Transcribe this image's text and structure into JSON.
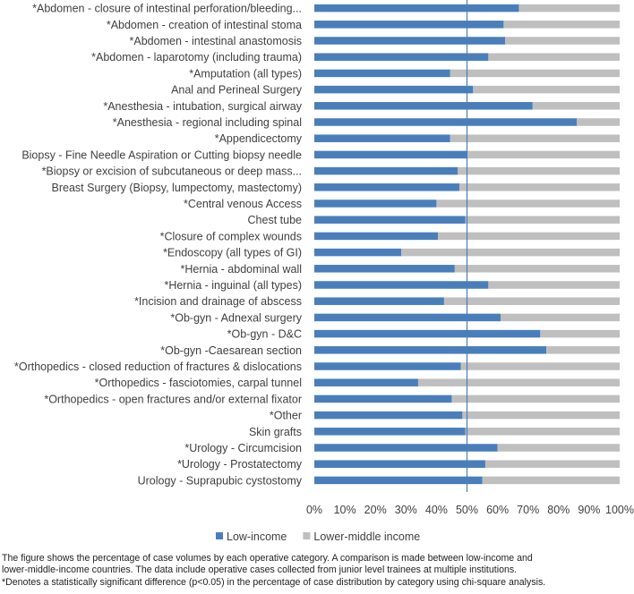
{
  "chart_data": {
    "type": "bar",
    "stacked": true,
    "orientation": "horizontal",
    "title": "",
    "xlabel": "",
    "ylabel": "",
    "xlim": [
      0,
      100
    ],
    "x_ticks": [
      "0%",
      "10%",
      "20%",
      "30%",
      "40%",
      "50%",
      "60%",
      "70%",
      "80%",
      "90%",
      "100%"
    ],
    "reference_line": 50,
    "legend_position": "bottom",
    "categories": [
      "*Abdomen - closure of intestinal perforation/bleeding...",
      "*Abdomen - creation of intestinal stoma",
      "*Abdomen - intestinal anastomosis",
      "*Abdomen - laparotomy (including trauma)",
      "*Amputation (all types)",
      "Anal and Perineal Surgery",
      "*Anesthesia - intubation, surgical airway",
      "*Anesthesia - regional including spinal",
      "*Appendicectomy",
      "Biopsy - Fine Needle Aspiration or Cutting biopsy needle",
      "*Biopsy or excision of subcutaneous or deep mass...",
      "Breast Surgery (Biopsy, lumpectomy, mastectomy)",
      "*Central venous Access",
      "Chest tube",
      "*Closure of complex wounds",
      "*Endoscopy (all types of GI)",
      "*Hernia - abdominal wall",
      "*Hernia - inguinal (all types)",
      "*Incision and drainage of abscess",
      "*Ob-gyn - Adnexal surgery",
      "*Ob-gyn - D&C",
      "*Ob-gyn -Caesarean section",
      "*Orthopedics - closed reduction of fractures & dislocations",
      "*Orthopedics - fasciotomies, carpal tunnel",
      "*Orthopedics - open fractures and/or external fixator",
      "*Other",
      "Skin grafts",
      "*Urology - Circumcision",
      "*Urology - Prostatectomy",
      "Urology - Suprapubic cystostomy"
    ],
    "series": [
      {
        "name": "Low-income",
        "color": "#4a7ebb",
        "values": [
          67,
          62,
          62.5,
          57,
          44.5,
          52,
          71.5,
          86,
          44.5,
          50,
          47,
          47.5,
          40,
          49.5,
          40.5,
          28.5,
          46,
          57,
          42.5,
          61,
          74,
          76,
          48,
          34,
          45,
          48.5,
          49.5,
          60,
          56,
          55
        ]
      },
      {
        "name": "Lower-middle income",
        "color": "#bfbfbf",
        "values": [
          33,
          38,
          37.5,
          43,
          55.5,
          48,
          28.5,
          14,
          55.5,
          50,
          53,
          52.5,
          60,
          50.5,
          59.5,
          71.5,
          54,
          43,
          57.5,
          39,
          26,
          24,
          52,
          66,
          55,
          51.5,
          50.5,
          40,
          44,
          45
        ]
      }
    ]
  },
  "caption": {
    "line1": "The figure shows the percentage of case volumes by each operative category. A comparison is made between low-income and",
    "line2": "lower-middle-income countries. The data include operative cases collected from junior level trainees at multiple institutions.",
    "line3": "*Denotes a statistically significant difference (p<0.05) in the percentage of case distribution by category using chi-square analysis."
  }
}
